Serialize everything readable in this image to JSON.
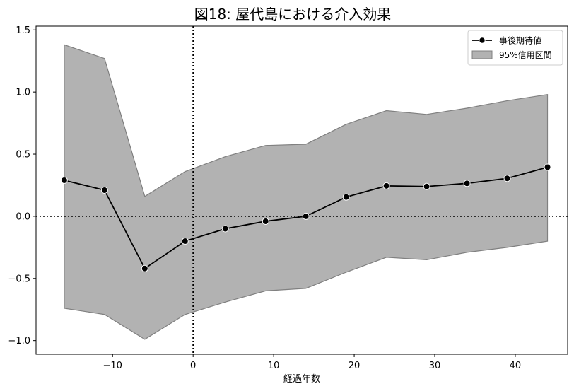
{
  "chart_data": {
    "type": "line",
    "title": "図18: 屋代島における介入効果",
    "xlabel": "経過年数",
    "ylabel": "",
    "xlim": [
      -19.5,
      46.5
    ],
    "ylim": [
      -1.11,
      1.53
    ],
    "xticks": [
      -10,
      0,
      10,
      20,
      30,
      40
    ],
    "xtick_labels": [
      "−10",
      "0",
      "10",
      "20",
      "30",
      "40"
    ],
    "yticks": [
      -1.0,
      -0.5,
      0.0,
      0.5,
      1.0,
      1.5
    ],
    "ytick_labels": [
      "−1.0",
      "−0.5",
      "0.0",
      "0.5",
      "1.0",
      "1.5"
    ],
    "x": [
      -16,
      -11,
      -6,
      -1,
      4,
      9,
      14,
      19,
      24,
      29,
      34,
      39,
      44
    ],
    "series": [
      {
        "name": "事後期待値",
        "values": [
          0.29,
          0.21,
          -0.42,
          -0.2,
          -0.1,
          -0.04,
          0.0,
          0.155,
          0.245,
          0.24,
          0.265,
          0.305,
          0.395
        ]
      }
    ],
    "band": {
      "name": "95%信用区間",
      "lower": [
        -0.74,
        -0.79,
        -0.99,
        -0.79,
        -0.69,
        -0.6,
        -0.58,
        -0.45,
        -0.33,
        -0.35,
        -0.29,
        -0.25,
        -0.2
      ],
      "upper": [
        1.38,
        1.27,
        0.16,
        0.36,
        0.48,
        0.57,
        0.58,
        0.74,
        0.85,
        0.82,
        0.87,
        0.93,
        0.98
      ]
    },
    "reference_lines": [
      {
        "axis": "x",
        "value": 0,
        "style": "dotted"
      },
      {
        "axis": "y",
        "value": 0,
        "style": "dotted"
      }
    ],
    "legend": {
      "position": "top-right",
      "entries": [
        "事後期待値",
        "95%信用区間"
      ]
    },
    "grid": false
  },
  "colors": {
    "line": "#000000",
    "band_fill": "#b2b2b2",
    "band_edge": "#808080",
    "marker_edge": "#ffffff"
  }
}
